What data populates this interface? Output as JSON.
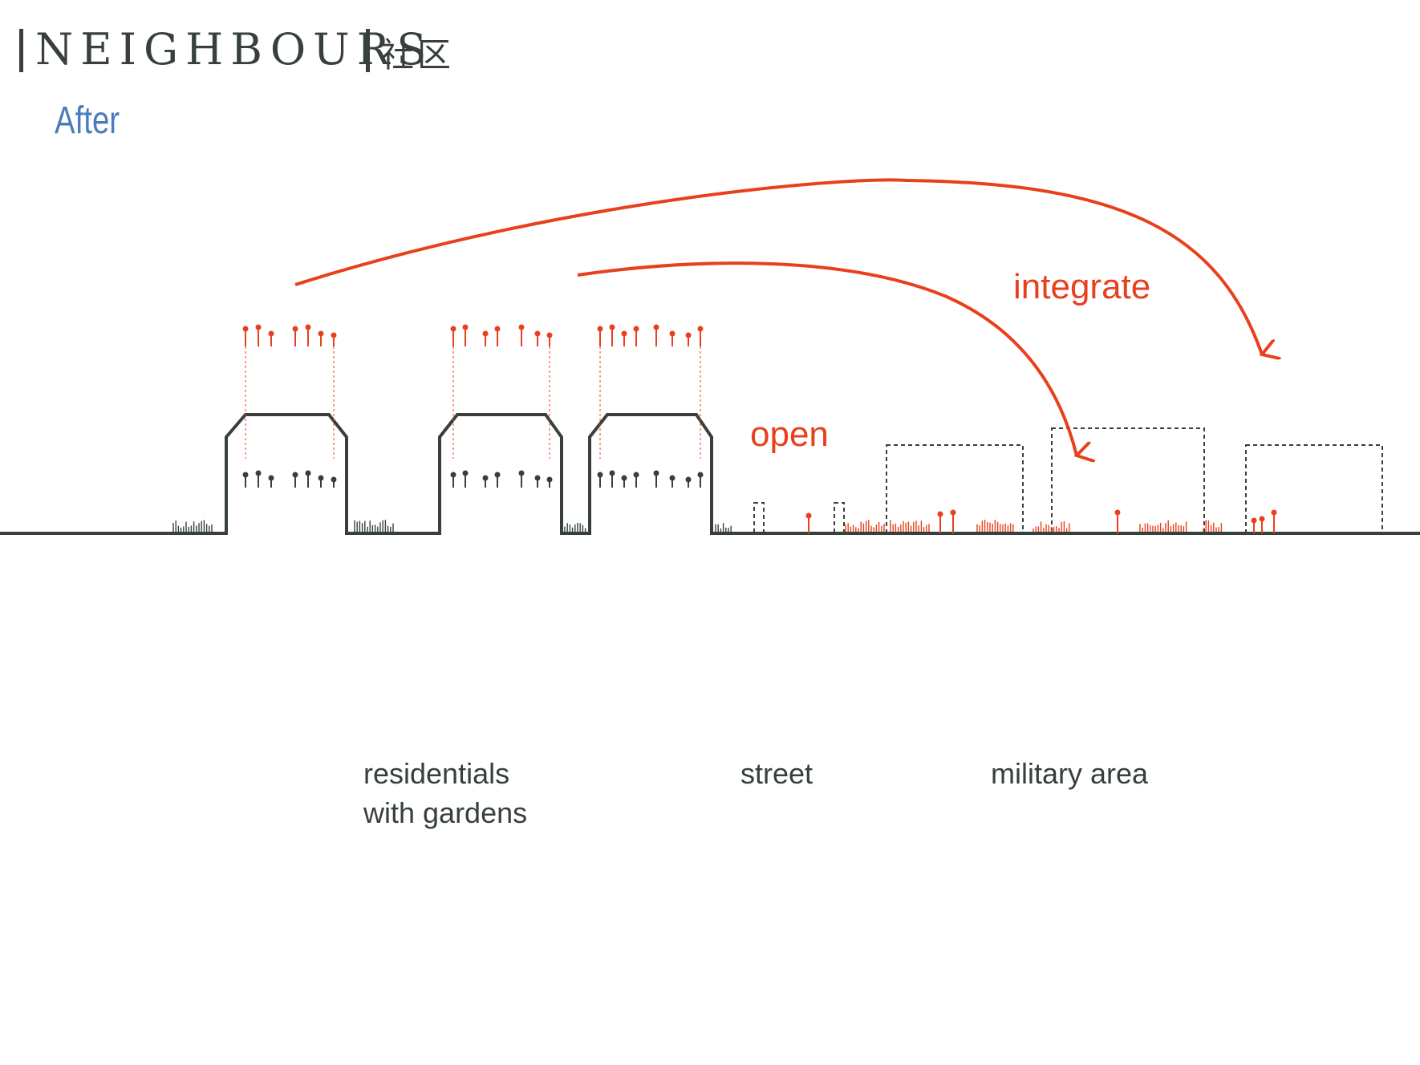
{
  "header": {
    "title": "NEIGHBOURS",
    "title_cn": "社区",
    "subtitle": "After"
  },
  "annotations": {
    "open": "open",
    "integrate": "integrate"
  },
  "labels": {
    "residentials_line1": "residentials",
    "residentials_line2": "with gardens",
    "street": "street",
    "military": "military area"
  },
  "colors": {
    "accent": "#e8401c",
    "ink": "#37403d",
    "subtitle": "#4b7bbf"
  }
}
